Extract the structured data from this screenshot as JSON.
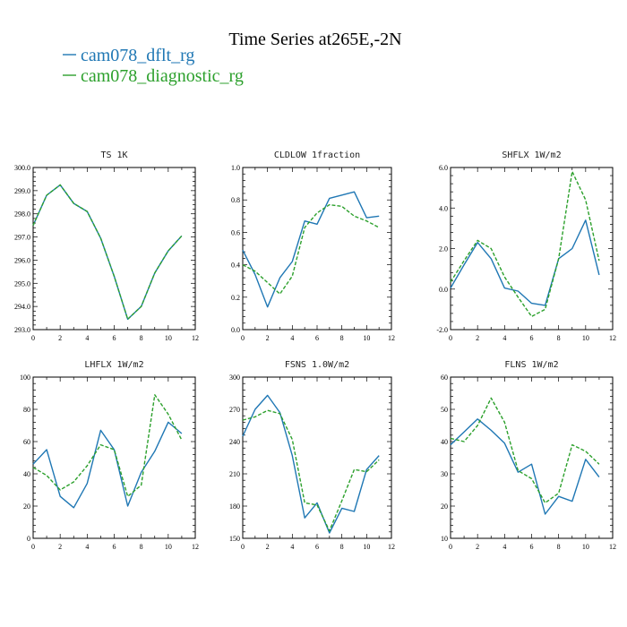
{
  "figure": {
    "title": "Time Series at265E,-2N",
    "legend": [
      {
        "label": "cam078_dflt_rg",
        "color": "#1f77b4",
        "dash": "solid"
      },
      {
        "label": "cam078_diagnostic_rg",
        "color": "#2ca02c",
        "dash": "dashed"
      }
    ]
  },
  "chart_data": [
    {
      "type": "line",
      "title": "TS   1K",
      "x": [
        0,
        1,
        2,
        3,
        4,
        5,
        6,
        7,
        8,
        9,
        10,
        11
      ],
      "xlim": [
        0,
        12
      ],
      "xticks": [
        0,
        2,
        4,
        6,
        8,
        10,
        12
      ],
      "xtick_labels": [
        "0",
        "2",
        "4",
        "6",
        "8",
        "10",
        "12"
      ],
      "ylim": [
        293,
        300
      ],
      "yticks": [
        293,
        294,
        295,
        296,
        297,
        298,
        299,
        300
      ],
      "ytick_labels": [
        "293.0",
        "294.0",
        "295.0",
        "296.0",
        "297.0",
        "298.0",
        "299.0",
        "300.0"
      ],
      "series": [
        {
          "name": "cam078_dflt_rg",
          "values": [
            297.5,
            298.8,
            299.25,
            298.45,
            298.1,
            296.95,
            295.3,
            293.45,
            294.0,
            295.45,
            296.4,
            297.05
          ]
        },
        {
          "name": "cam078_diagnostic_rg",
          "values": [
            297.5,
            298.8,
            299.25,
            298.45,
            298.1,
            296.95,
            295.3,
            293.45,
            294.0,
            295.45,
            296.4,
            297.05
          ]
        }
      ]
    },
    {
      "type": "line",
      "title": "CLDLOW   1fraction",
      "x": [
        0,
        1,
        2,
        3,
        4,
        5,
        6,
        7,
        8,
        9,
        10,
        11
      ],
      "xlim": [
        0,
        12
      ],
      "xticks": [
        0,
        2,
        4,
        6,
        8,
        10,
        12
      ],
      "xtick_labels": [
        "0",
        "2",
        "4",
        "6",
        "8",
        "10",
        "12"
      ],
      "ylim": [
        0,
        1
      ],
      "yticks": [
        0,
        0.2,
        0.4,
        0.6,
        0.8,
        1.0
      ],
      "ytick_labels": [
        "0.0",
        "0.2",
        "0.4",
        "0.6",
        "0.8",
        "1.0"
      ],
      "series": [
        {
          "name": "cam078_dflt_rg",
          "values": [
            0.49,
            0.34,
            0.14,
            0.32,
            0.42,
            0.67,
            0.65,
            0.81,
            0.83,
            0.85,
            0.69,
            0.7
          ]
        },
        {
          "name": "cam078_diagnostic_rg",
          "values": [
            0.4,
            0.36,
            0.29,
            0.22,
            0.33,
            0.63,
            0.72,
            0.77,
            0.76,
            0.7,
            0.67,
            0.63
          ]
        }
      ]
    },
    {
      "type": "line",
      "title": "SHFLX   1W/m2",
      "x": [
        0,
        1,
        2,
        3,
        4,
        5,
        6,
        7,
        8,
        9,
        10,
        11
      ],
      "xlim": [
        0,
        12
      ],
      "xticks": [
        0,
        2,
        4,
        6,
        8,
        10,
        12
      ],
      "xtick_labels": [
        "0",
        "2",
        "4",
        "6",
        "8",
        "10",
        "12"
      ],
      "ylim": [
        -2,
        6
      ],
      "yticks": [
        -2,
        0,
        2,
        4,
        6
      ],
      "ytick_labels": [
        "-2.0",
        "0.0",
        "2.0",
        "4.0",
        "6.0"
      ],
      "series": [
        {
          "name": "cam078_dflt_rg",
          "values": [
            0.05,
            1.2,
            2.3,
            1.5,
            0.05,
            -0.1,
            -0.7,
            -0.8,
            1.5,
            2.0,
            3.4,
            0.7
          ]
        },
        {
          "name": "cam078_diagnostic_rg",
          "values": [
            0.35,
            1.4,
            2.4,
            2.0,
            0.6,
            -0.4,
            -1.35,
            -1.0,
            1.5,
            5.8,
            4.4,
            1.4
          ]
        }
      ]
    },
    {
      "type": "line",
      "title": "LHFLX   1W/m2",
      "x": [
        0,
        1,
        2,
        3,
        4,
        5,
        6,
        7,
        8,
        9,
        10,
        11
      ],
      "xlim": [
        0,
        12
      ],
      "xticks": [
        0,
        2,
        4,
        6,
        8,
        10,
        12
      ],
      "xtick_labels": [
        "0",
        "2",
        "4",
        "6",
        "8",
        "10",
        "12"
      ],
      "ylim": [
        0,
        100
      ],
      "yticks": [
        0,
        20,
        40,
        60,
        80,
        100
      ],
      "ytick_labels": [
        "0",
        "20",
        "40",
        "60",
        "80",
        "100"
      ],
      "series": [
        {
          "name": "cam078_dflt_rg",
          "values": [
            46,
            55,
            26,
            19,
            34,
            67,
            55,
            20,
            41,
            54,
            72,
            65
          ]
        },
        {
          "name": "cam078_diagnostic_rg",
          "values": [
            44,
            39,
            30,
            35,
            45,
            58,
            55,
            26,
            33,
            89,
            77,
            61
          ]
        }
      ]
    },
    {
      "type": "line",
      "title": "FSNS   1.0W/m2",
      "x": [
        0,
        1,
        2,
        3,
        4,
        5,
        6,
        7,
        8,
        9,
        10,
        11
      ],
      "xlim": [
        0,
        12
      ],
      "xticks": [
        0,
        2,
        4,
        6,
        8,
        10,
        12
      ],
      "xtick_labels": [
        "0",
        "2",
        "4",
        "6",
        "8",
        "10",
        "12"
      ],
      "ylim": [
        150,
        300
      ],
      "yticks": [
        150,
        180,
        210,
        240,
        270,
        300
      ],
      "ytick_labels": [
        "150",
        "180",
        "210",
        "240",
        "270",
        "300"
      ],
      "series": [
        {
          "name": "cam078_dflt_rg",
          "values": [
            245,
            270,
            283,
            267,
            227,
            169,
            183,
            155,
            178,
            175,
            214,
            227
          ]
        },
        {
          "name": "cam078_diagnostic_rg",
          "values": [
            260,
            263,
            269,
            266,
            242,
            183,
            181,
            157,
            185,
            214,
            212,
            223
          ]
        }
      ]
    },
    {
      "type": "line",
      "title": "FLNS   1W/m2",
      "x": [
        0,
        1,
        2,
        3,
        4,
        5,
        6,
        7,
        8,
        9,
        10,
        11
      ],
      "xlim": [
        0,
        12
      ],
      "xticks": [
        0,
        2,
        4,
        6,
        8,
        10,
        12
      ],
      "xtick_labels": [
        "0",
        "2",
        "4",
        "6",
        "8",
        "10",
        "12"
      ],
      "ylim": [
        10,
        60
      ],
      "yticks": [
        10,
        20,
        30,
        40,
        50,
        60
      ],
      "ytick_labels": [
        "10",
        "20",
        "30",
        "40",
        "50",
        "60"
      ],
      "series": [
        {
          "name": "cam078_dflt_rg",
          "values": [
            39,
            43,
            47,
            43.5,
            39.5,
            30.5,
            33,
            17.5,
            23,
            21.5,
            34.5,
            29
          ]
        },
        {
          "name": "cam078_diagnostic_rg",
          "values": [
            41,
            40,
            45,
            53.5,
            46,
            31,
            28.5,
            21,
            24,
            39,
            37,
            33
          ]
        }
      ]
    }
  ]
}
